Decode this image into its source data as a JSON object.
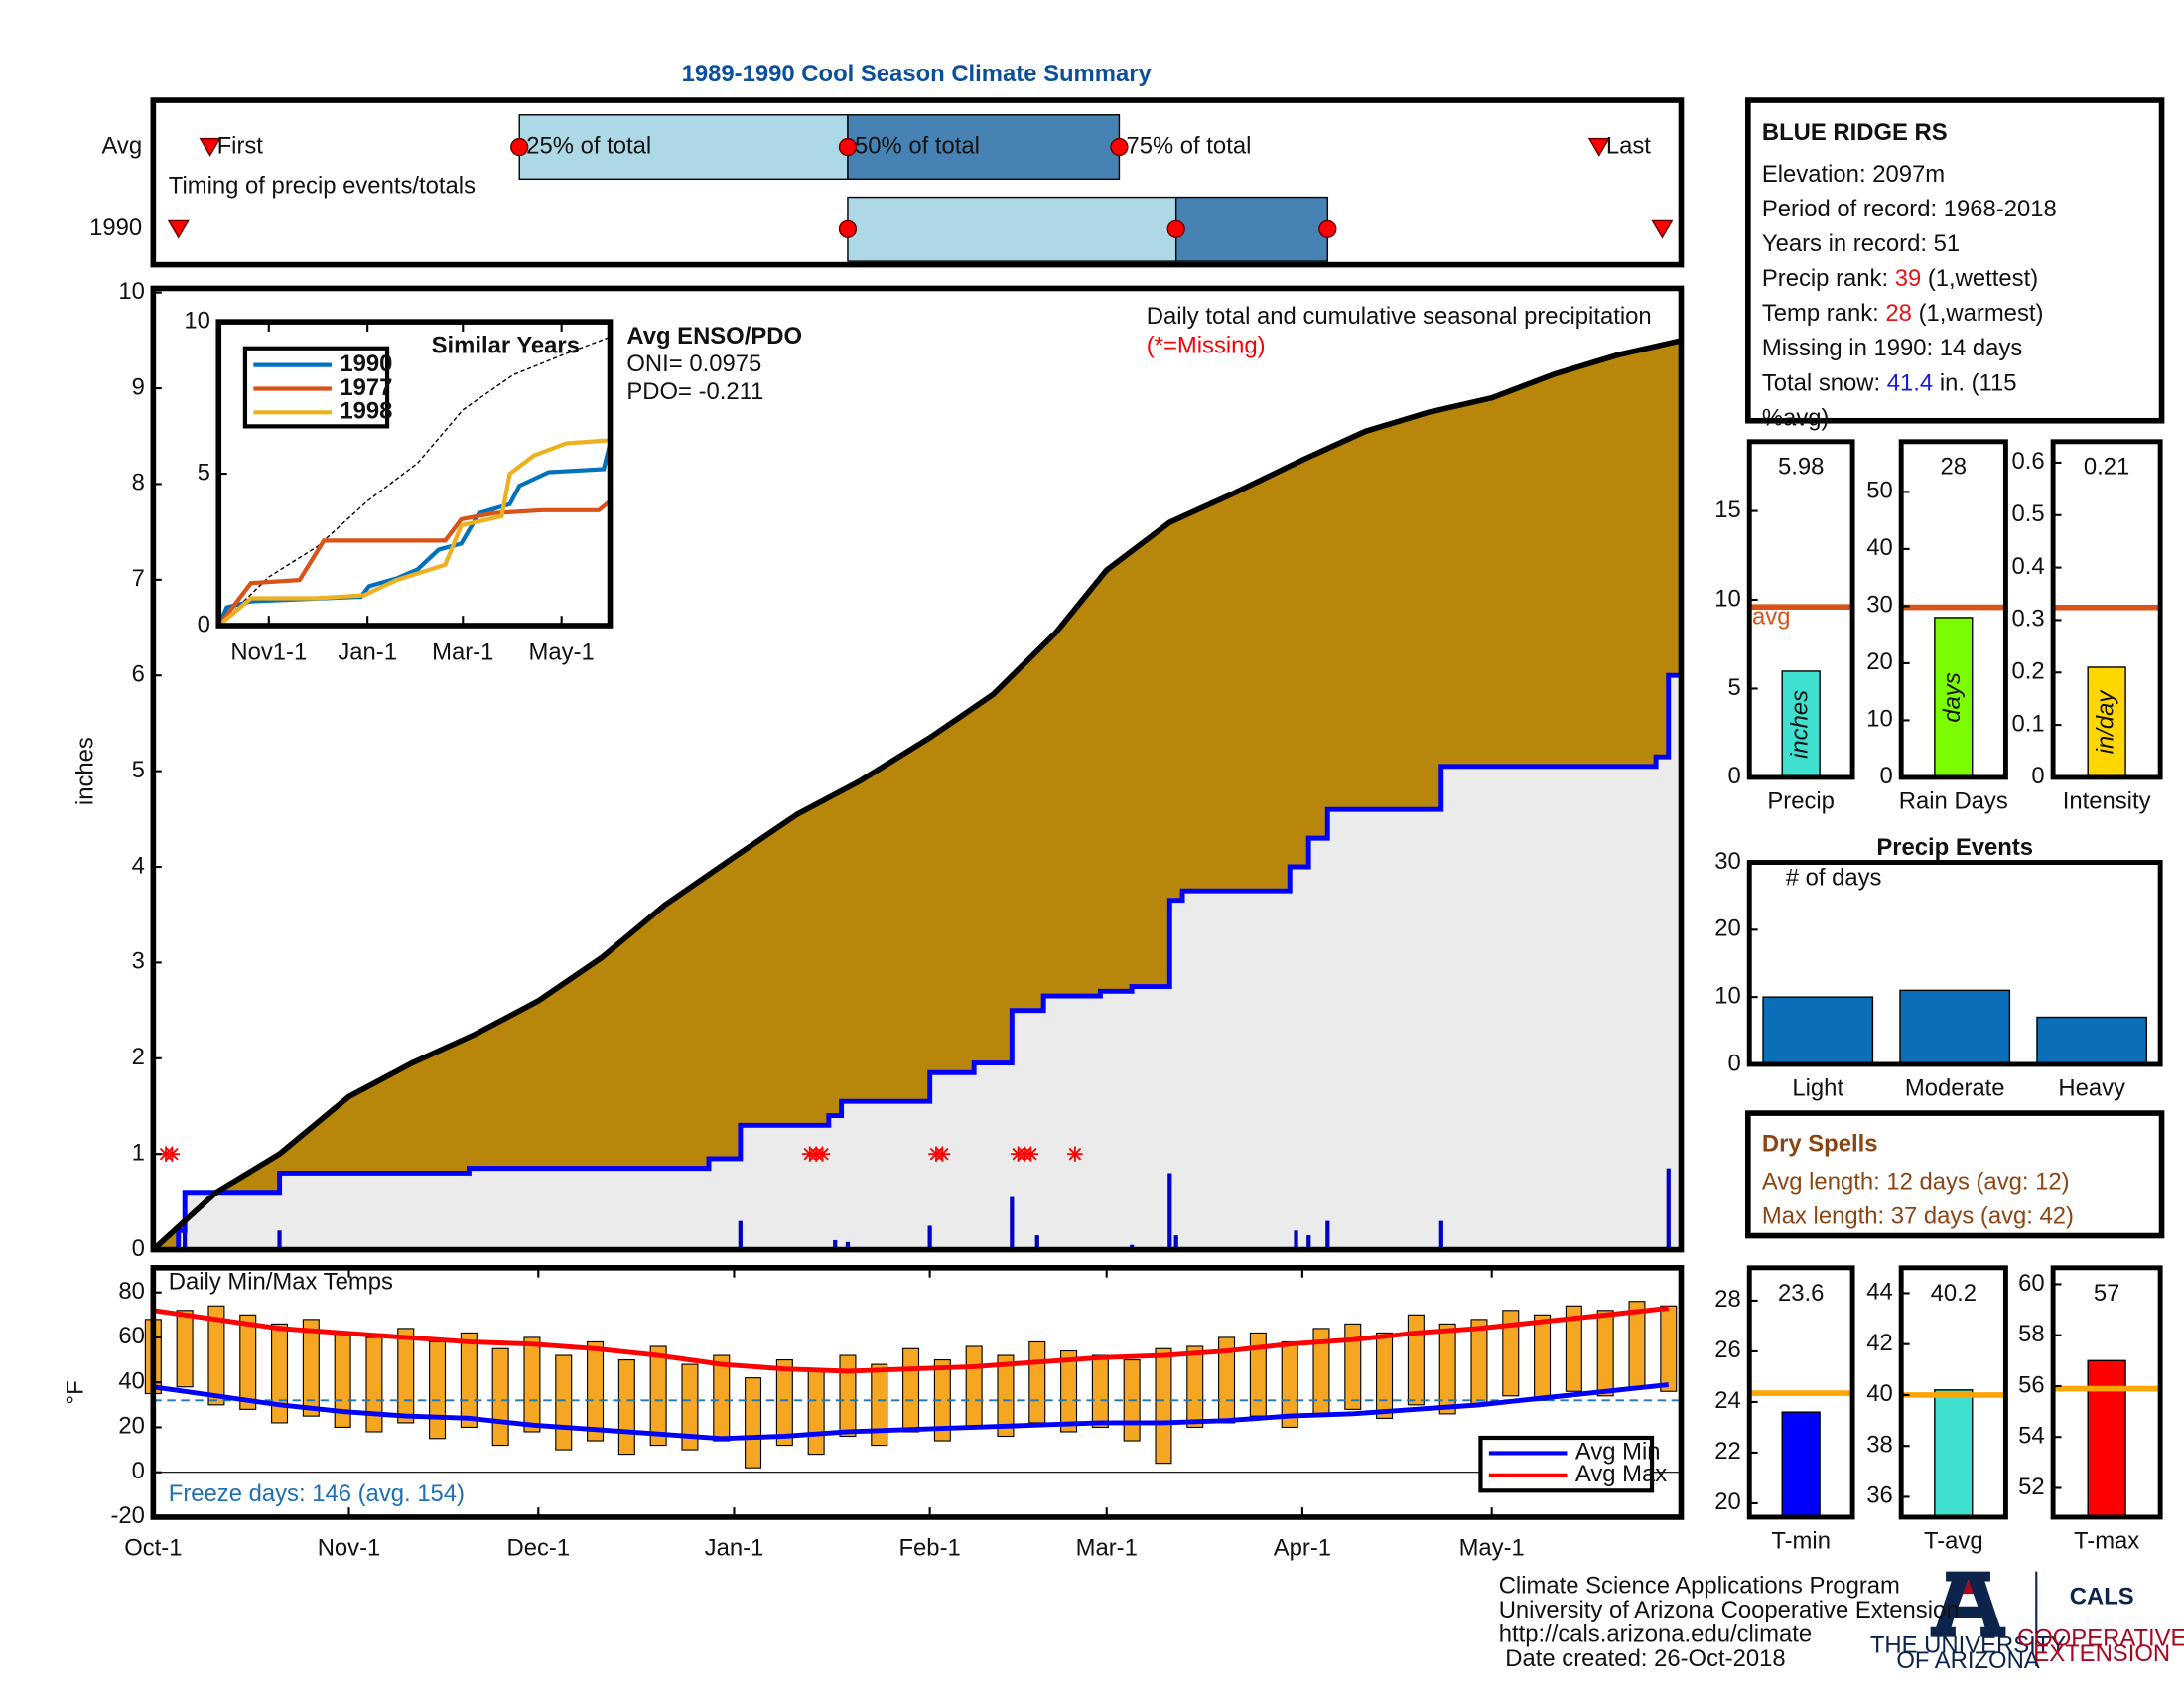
{
  "title": "1989-1990 Cool Season Climate Summary",
  "chart_data": [
    {
      "type": "timing",
      "xlim": [
        0,
        242
      ],
      "rows": [
        {
          "label": "Avg",
          "first": 9,
          "q25": 58,
          "q50": 110,
          "q75": 153,
          "last": 229
        },
        {
          "label": "1990",
          "first": 4,
          "q25": 110,
          "q50": 162,
          "q75": 186,
          "last": 239
        }
      ],
      "marker_labels": {
        "first": "First",
        "q25": "25% of total",
        "q50": "50% of total",
        "q75": "75% of total",
        "last": "Last"
      },
      "annotation": "Timing of precip events/totals",
      "colors": [
        "#add8e6",
        "#4682b4"
      ],
      "marker_color": "#ff0000"
    },
    {
      "type": "area",
      "xlim": [
        0,
        242
      ],
      "ylim": [
        0,
        10
      ],
      "yticks": [
        0,
        1,
        2,
        3,
        4,
        5,
        6,
        7,
        8,
        9,
        10
      ],
      "ylabel": "inches",
      "annotations": [
        "Daily total and cumulative seasonal precipitation",
        "(*=Missing)"
      ],
      "average": {
        "x": [
          0,
          10,
          20,
          31,
          41,
          51,
          61,
          71,
          81,
          92,
          102,
          112,
          123,
          133,
          143,
          151,
          161,
          171,
          182,
          192,
          202,
          212,
          222,
          232,
          242
        ],
        "values": [
          0,
          0.6,
          1.0,
          1.6,
          1.95,
          2.25,
          2.6,
          3.05,
          3.6,
          4.1,
          4.55,
          4.9,
          5.35,
          5.8,
          6.45,
          7.1,
          7.6,
          7.9,
          8.25,
          8.55,
          8.75,
          8.9,
          9.15,
          9.35,
          9.5
        ],
        "color": "#b8860b",
        "edge_color": "#000000"
      },
      "season": {
        "x": [
          0,
          4,
          4,
          5,
          5,
          20,
          20,
          50,
          50,
          88,
          88,
          93,
          93,
          107,
          107,
          109,
          109,
          123,
          123,
          130,
          130,
          136,
          136,
          141,
          141,
          150,
          150,
          155,
          155,
          161,
          161,
          163,
          163,
          180,
          180,
          183,
          183,
          186,
          186,
          204,
          204,
          238,
          238,
          240,
          240,
          242
        ],
        "values": [
          0,
          0,
          0.2,
          0.2,
          0.6,
          0.6,
          0.8,
          0.8,
          0.85,
          0.85,
          0.95,
          0.95,
          1.3,
          1.3,
          1.4,
          1.4,
          1.55,
          1.55,
          1.85,
          1.85,
          1.95,
          1.95,
          2.5,
          2.5,
          2.65,
          2.65,
          2.7,
          2.7,
          2.75,
          2.75,
          3.65,
          3.65,
          3.75,
          3.75,
          4.0,
          4.0,
          4.3,
          4.3,
          4.6,
          4.6,
          5.05,
          5.05,
          5.15,
          5.15,
          6.0,
          6.0
        ],
        "color": "#0000ff",
        "fill": "#ebebeb"
      },
      "daily": {
        "x": [
          4,
          5,
          20,
          93,
          108,
          110,
          123,
          136,
          140,
          155,
          161,
          162,
          181,
          183,
          186,
          204,
          240
        ],
        "values": [
          0.2,
          0.4,
          0.2,
          0.3,
          0.1,
          0.08,
          0.25,
          0.55,
          0.15,
          0.05,
          0.8,
          0.15,
          0.2,
          0.15,
          0.3,
          0.3,
          0.85
        ],
        "color": "#0000c8"
      },
      "missing": {
        "x": [
          2,
          3,
          104,
          105,
          106,
          124,
          125,
          137,
          138,
          139,
          146
        ],
        "values": [
          1,
          1,
          1,
          1,
          1,
          1,
          1,
          1,
          1,
          1,
          1
        ],
        "color": "#ff0000"
      }
    },
    {
      "type": "line",
      "title": "Similar Years",
      "xlim": [
        0,
        242
      ],
      "ylim": [
        0,
        10
      ],
      "yticks": [
        0,
        5,
        10
      ],
      "xticks": [
        {
          "value": 31,
          "label": "Nov1-1"
        },
        {
          "value": 92,
          "label": "Jan-1"
        },
        {
          "value": 151,
          "label": "Mar-1"
        },
        {
          "value": 212,
          "label": "May-1"
        }
      ],
      "series": [
        {
          "name": "1990",
          "color": "#0072bd",
          "x": [
            0,
            5,
            20,
            88,
            93,
            110,
            123,
            136,
            150,
            161,
            180,
            186,
            204,
            238,
            242
          ],
          "values": [
            0,
            0.6,
            0.8,
            0.95,
            1.3,
            1.55,
            1.85,
            2.5,
            2.7,
            3.7,
            4.0,
            4.6,
            5.05,
            5.15,
            6.0
          ]
        },
        {
          "name": "1977",
          "color": "#d95319",
          "x": [
            0,
            20,
            50,
            65,
            90,
            140,
            150,
            170,
            200,
            235,
            242
          ],
          "values": [
            0,
            1.4,
            1.5,
            2.8,
            2.8,
            2.8,
            3.5,
            3.7,
            3.8,
            3.8,
            4.1
          ]
        },
        {
          "name": "1998",
          "color": "#edb120",
          "x": [
            0,
            20,
            60,
            90,
            110,
            140,
            150,
            175,
            180,
            195,
            215,
            242
          ],
          "values": [
            0,
            0.9,
            0.9,
            1.0,
            1.5,
            2.0,
            3.3,
            3.6,
            5.0,
            5.6,
            6.0,
            6.1
          ]
        }
      ],
      "average": {
        "x": [
          0,
          31,
          61,
          92,
          123,
          151,
          182,
          212,
          242
        ],
        "values": [
          0,
          1.6,
          2.6,
          4.1,
          5.35,
          7.1,
          8.25,
          8.9,
          9.5
        ],
        "color": "#000000"
      },
      "legend": "upper left",
      "annotations": [
        "Avg ENSO/PDO",
        "ONI= 0.0975",
        "PDO= -0.211"
      ]
    },
    {
      "type": "bar",
      "categories": [
        "Precip"
      ],
      "values": [
        5.98
      ],
      "color": "#40e0d0",
      "ylim": [
        0,
        18.9
      ],
      "yticks": [
        0,
        5,
        10,
        15
      ],
      "avg": 9.6,
      "avg_color": "#d95319",
      "avg_label": "avg",
      "unit_label": "inches",
      "show_values": true
    },
    {
      "type": "bar",
      "categories": [
        "Rain Days"
      ],
      "values": [
        28
      ],
      "color": "#7cfc00",
      "ylim": [
        0,
        58.8
      ],
      "yticks": [
        0,
        10,
        20,
        30,
        40,
        50
      ],
      "avg": 29.8,
      "avg_color": "#d95319",
      "unit_label": "days",
      "show_values": true
    },
    {
      "type": "bar",
      "categories": [
        "Intensity"
      ],
      "values": [
        0.21
      ],
      "color": "#ffd700",
      "ylim": [
        0,
        0.64
      ],
      "yticks": [
        0,
        0.1,
        0.2,
        0.3,
        0.4,
        0.5,
        0.6
      ],
      "avg": 0.324,
      "avg_color": "#d95319",
      "unit_label": "in/day",
      "show_values": true
    },
    {
      "type": "bar",
      "title": "Precip Events",
      "annotation": "# of days",
      "categories": [
        "Light",
        "Moderate",
        "Heavy"
      ],
      "values": [
        10,
        11,
        7
      ],
      "color": "#0b6eb8",
      "ylim": [
        0,
        30
      ],
      "yticks": [
        0,
        10,
        20,
        30
      ]
    },
    {
      "type": "range",
      "title": "Daily Min/Max Temps",
      "note": "Freeze days: 146 (avg. 154)",
      "note_color": "#1f6fb5",
      "ylabel": "°F",
      "xlim": [
        0,
        242
      ],
      "ylim": [
        -20,
        91
      ],
      "yticks": [
        -20,
        0,
        20,
        40,
        60,
        80
      ],
      "xticks": [
        {
          "value": 0,
          "label": "Oct-1"
        },
        {
          "value": 31,
          "label": "Nov-1"
        },
        {
          "value": 61,
          "label": "Dec-1"
        },
        {
          "value": 92,
          "label": "Jan-1"
        },
        {
          "value": 123,
          "label": "Feb-1"
        },
        {
          "value": 151,
          "label": "Mar-1"
        },
        {
          "value": 182,
          "label": "Apr-1"
        },
        {
          "value": 212,
          "label": "May-1"
        }
      ],
      "reference_line": 32,
      "reference_color": "#1f77b4",
      "bars": {
        "x": [
          0,
          5,
          10,
          15,
          20,
          25,
          30,
          35,
          40,
          45,
          50,
          55,
          60,
          65,
          70,
          75,
          80,
          85,
          90,
          95,
          100,
          105,
          110,
          115,
          120,
          125,
          130,
          135,
          140,
          145,
          150,
          155,
          160,
          165,
          170,
          175,
          180,
          185,
          190,
          195,
          200,
          205,
          210,
          215,
          220,
          225,
          230,
          235,
          240
        ],
        "low": [
          35,
          38,
          30,
          28,
          22,
          25,
          20,
          18,
          22,
          15,
          20,
          12,
          18,
          10,
          14,
          8,
          12,
          10,
          14,
          2,
          12,
          8,
          16,
          12,
          18,
          14,
          20,
          16,
          22,
          18,
          20,
          14,
          4,
          20,
          22,
          25,
          20,
          26,
          28,
          24,
          30,
          26,
          30,
          34,
          32,
          36,
          34,
          38,
          36
        ],
        "high": [
          68,
          72,
          74,
          70,
          66,
          68,
          62,
          60,
          64,
          58,
          62,
          55,
          60,
          52,
          58,
          50,
          56,
          48,
          52,
          42,
          50,
          46,
          52,
          48,
          55,
          50,
          56,
          52,
          58,
          54,
          52,
          50,
          55,
          56,
          60,
          62,
          58,
          64,
          66,
          62,
          70,
          66,
          68,
          72,
          70,
          74,
          72,
          76,
          74
        ],
        "color": "#f5a623"
      },
      "series": [
        {
          "name": "Avg Min",
          "color": "#0000ff",
          "x": [
            0,
            10,
            20,
            30,
            40,
            50,
            60,
            70,
            80,
            90,
            100,
            110,
            120,
            130,
            140,
            150,
            160,
            170,
            180,
            190,
            200,
            210,
            220,
            230,
            240
          ],
          "values": [
            38,
            34,
            30,
            27,
            25,
            24,
            21,
            19,
            17,
            15,
            16,
            18,
            19,
            20,
            21,
            22,
            22,
            23,
            25,
            26,
            28,
            30,
            33,
            36,
            39
          ]
        },
        {
          "name": "Avg Max",
          "color": "#ff0000",
          "x": [
            0,
            10,
            20,
            30,
            40,
            50,
            60,
            70,
            80,
            90,
            100,
            110,
            120,
            130,
            140,
            150,
            160,
            170,
            180,
            190,
            200,
            210,
            220,
            230,
            240
          ],
          "values": [
            72,
            68,
            64,
            62,
            60,
            58,
            57,
            55,
            52,
            48,
            46,
            45,
            46,
            47,
            49,
            51,
            52,
            54,
            57,
            59,
            62,
            64,
            67,
            70,
            73
          ]
        }
      ],
      "legend": "lower right"
    },
    {
      "type": "bar",
      "categories": [
        "T-min"
      ],
      "values": [
        23.6
      ],
      "color": "#0000ff",
      "ylim": [
        19.45,
        29.3
      ],
      "yticks": [
        20,
        22,
        24,
        26,
        28
      ],
      "avg": 24.35,
      "avg_color": "#ffa500",
      "show_values": true
    },
    {
      "type": "bar",
      "categories": [
        "T-avg"
      ],
      "values": [
        40.2
      ],
      "color": "#40e0d0",
      "ylim": [
        35.2,
        45.0
      ],
      "yticks": [
        36,
        38,
        40,
        42,
        44
      ],
      "avg": 40.0,
      "avg_color": "#ffa500",
      "show_values": true
    },
    {
      "type": "bar",
      "categories": [
        "T-max"
      ],
      "values": [
        57
      ],
      "color": "#ff0000",
      "ylim": [
        50.85,
        60.65
      ],
      "yticks": [
        52,
        54,
        56,
        58,
        60
      ],
      "avg": 55.9,
      "avg_color": "#ffa500",
      "show_values": true
    }
  ],
  "station": {
    "name": "BLUE RIDGE RS",
    "lines": [
      [
        "Elevation: 2097m"
      ],
      [
        "Period of record: 1968-2018"
      ],
      [
        "Years in record: 51"
      ],
      [
        "Precip rank:",
        {
          "text": "39",
          "color": "#e8141a"
        },
        "(1,wettest)"
      ],
      [
        "Temp rank:",
        {
          "text": "28",
          "color": "#e8141a"
        },
        "(1,warmest)"
      ],
      [
        "Missing in 1990: 14 days"
      ],
      [
        "Total snow:",
        {
          "text": "41.4",
          "color": "#1a1ad8"
        },
        "in. (115"
      ],
      [
        "%avg)"
      ]
    ]
  },
  "dry_spells": {
    "title": "Dry Spells",
    "color": "#8b4513",
    "lines": [
      "Avg length: 12 days (avg: 12)",
      "Max length: 37 days (avg: 42)"
    ]
  },
  "footer": {
    "lines": [
      "Climate Science Applications Program",
      "University of Arizona Cooperative Extension",
      "http://cals.arizona.edu/climate",
      " Date created: 26-Oct-2018"
    ],
    "university": [
      "THE UNIVERSITY",
      "OF ARIZONA"
    ],
    "cals": "CALS",
    "extension": [
      "COOPERATIVE",
      "EXTENSION"
    ]
  }
}
